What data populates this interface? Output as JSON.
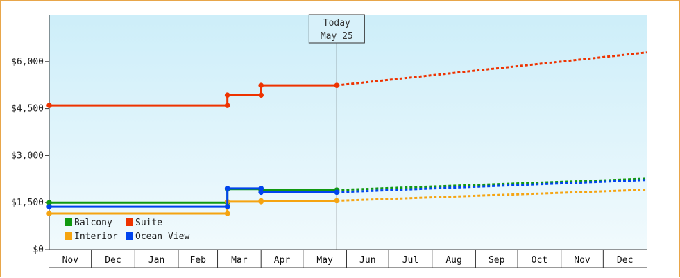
{
  "chart_data": {
    "type": "line",
    "title": "",
    "xlabel": "",
    "ylabel": "",
    "ylim": [
      0,
      7500
    ],
    "yticks": [
      0,
      1500,
      3000,
      4500,
      6000
    ],
    "ytick_labels": [
      "$0",
      "$1,500",
      "$3,000",
      "$4,500",
      "$6,000"
    ],
    "x_start": "Nov 1",
    "x_end": "Dec 31",
    "months": [
      "Nov",
      "Dec",
      "Jan",
      "Feb",
      "Mar",
      "Apr",
      "May",
      "Jun",
      "Jul",
      "Aug",
      "Sep",
      "Oct",
      "Nov",
      "Dec"
    ],
    "month_lengths": [
      30,
      31,
      31,
      28,
      31,
      30,
      31,
      30,
      31,
      31,
      30,
      31,
      30,
      31
    ],
    "today": {
      "label": "Today",
      "date_label": "May 25",
      "month_index": 6,
      "day": 25
    },
    "legend_position": "bottom-left",
    "series": [
      {
        "name": "Balcony",
        "color": "#119911",
        "history": [
          {
            "date": "Nov 1",
            "value": 1500
          },
          {
            "date": "Mar 8",
            "value": 1500
          },
          {
            "date": "Mar 8",
            "value": 1930
          },
          {
            "date": "Apr 1",
            "value": 1930
          },
          {
            "date": "Apr 1",
            "value": 1900
          },
          {
            "date": "May 25",
            "value": 1900
          }
        ],
        "forecast": [
          {
            "date": "May 25",
            "value": 1900
          },
          {
            "date": "Dec 31",
            "value": 2260
          }
        ]
      },
      {
        "name": "Suite",
        "color": "#ee3300",
        "history": [
          {
            "date": "Nov 1",
            "value": 4600
          },
          {
            "date": "Mar 8",
            "value": 4600
          },
          {
            "date": "Mar 8",
            "value": 4930
          },
          {
            "date": "Apr 1",
            "value": 4930
          },
          {
            "date": "Apr 1",
            "value": 5240
          },
          {
            "date": "May 25",
            "value": 5240
          }
        ],
        "forecast": [
          {
            "date": "May 25",
            "value": 5240
          },
          {
            "date": "Dec 31",
            "value": 6290
          }
        ]
      },
      {
        "name": "Interior",
        "color": "#f5a411",
        "history": [
          {
            "date": "Nov 1",
            "value": 1150
          },
          {
            "date": "Mar 8",
            "value": 1150
          },
          {
            "date": "Mar 8",
            "value": 1530
          },
          {
            "date": "Apr 1",
            "value": 1530
          },
          {
            "date": "Apr 1",
            "value": 1560
          },
          {
            "date": "May 25",
            "value": 1560
          }
        ],
        "forecast": [
          {
            "date": "May 25",
            "value": 1560
          },
          {
            "date": "Dec 31",
            "value": 1910
          }
        ]
      },
      {
        "name": "Ocean View",
        "color": "#0044ee",
        "history": [
          {
            "date": "Nov 1",
            "value": 1370
          },
          {
            "date": "Mar 8",
            "value": 1370
          },
          {
            "date": "Mar 8",
            "value": 1950
          },
          {
            "date": "Apr 1",
            "value": 1950
          },
          {
            "date": "Apr 1",
            "value": 1830
          },
          {
            "date": "May 25",
            "value": 1830
          }
        ],
        "forecast": [
          {
            "date": "May 25",
            "value": 1830
          },
          {
            "date": "Dec 31",
            "value": 2220
          }
        ]
      }
    ]
  }
}
